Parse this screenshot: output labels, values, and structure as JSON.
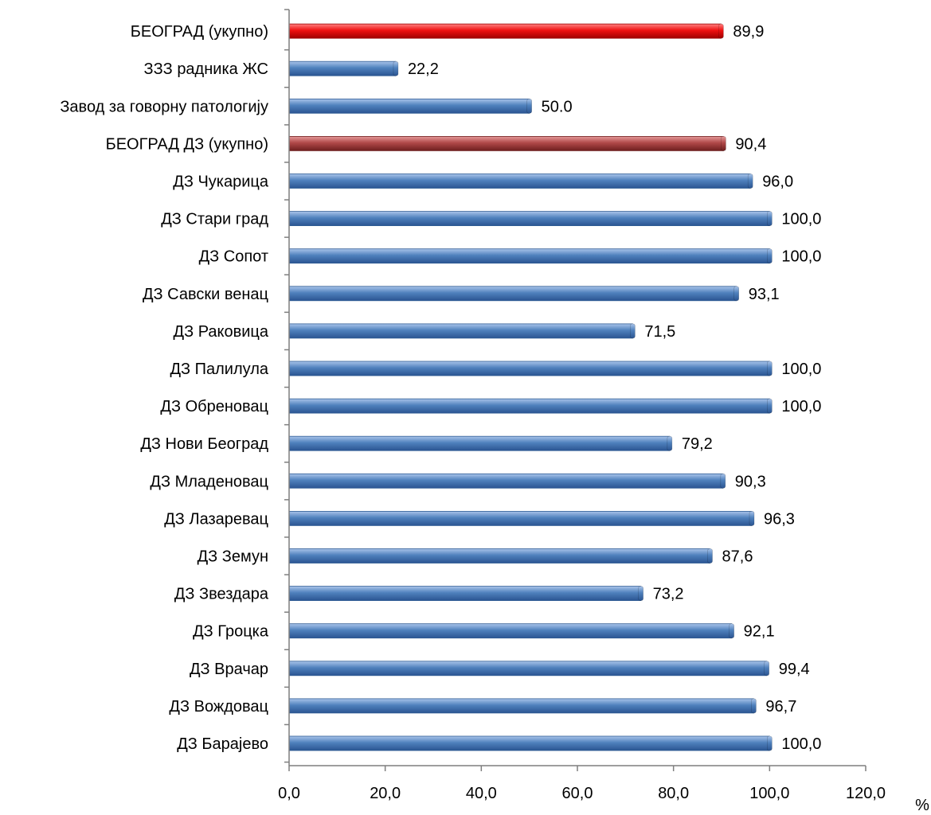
{
  "chart_data": {
    "type": "bar",
    "orientation": "horizontal",
    "categories": [
      "ДЗ Барајево",
      "ДЗ Вождовац",
      "ДЗ Врачар",
      "ДЗ Гроцка",
      "ДЗ Звездара",
      "ДЗ Земун",
      "ДЗ Лазаревац",
      "ДЗ Младеновац",
      "ДЗ Нови Београд",
      "ДЗ Обреновац",
      "ДЗ Палилула",
      "ДЗ Раковица",
      "ДЗ Савски венац",
      "ДЗ Сопот",
      "ДЗ Стари град",
      "ДЗ Чукарица",
      "БЕОГРАД ДЗ (укупно)",
      "Завод за говорну патологију",
      "ЗЗЗ радника ЖС",
      "БЕОГРАД (укупно)"
    ],
    "values": [
      100.0,
      96.7,
      99.4,
      92.1,
      73.2,
      87.6,
      96.3,
      90.3,
      79.2,
      100.0,
      100.0,
      71.5,
      93.1,
      100.0,
      100.0,
      96.0,
      90.4,
      50.0,
      22.2,
      89.9
    ],
    "value_labels": [
      "100,0",
      "96,7",
      "99,4",
      "92,1",
      "73,2",
      "87,6",
      "96,3",
      "90,3",
      "79,2",
      "100,0",
      "100,0",
      "71,5",
      "93,1",
      "100,0",
      "100,0",
      "96,0",
      "90,4",
      "50.0",
      "22,2",
      "89,9"
    ],
    "bar_colors": [
      "blue",
      "blue",
      "blue",
      "blue",
      "blue",
      "blue",
      "blue",
      "blue",
      "blue",
      "blue",
      "blue",
      "blue",
      "blue",
      "blue",
      "blue",
      "blue",
      "dark-red",
      "blue",
      "blue",
      "red"
    ],
    "colors": {
      "blue": "#4f81bd",
      "dark-red": "#a33b3b",
      "red": "#e60000"
    },
    "xlim": [
      0,
      120
    ],
    "x_ticks": [
      0,
      20,
      40,
      60,
      80,
      100,
      120
    ],
    "x_tick_labels": [
      "0,0",
      "20,0",
      "40,0",
      "60,0",
      "80,0",
      "100,0",
      "120,0"
    ],
    "xlabel": "%",
    "title": "",
    "grid": false,
    "legend": false
  }
}
